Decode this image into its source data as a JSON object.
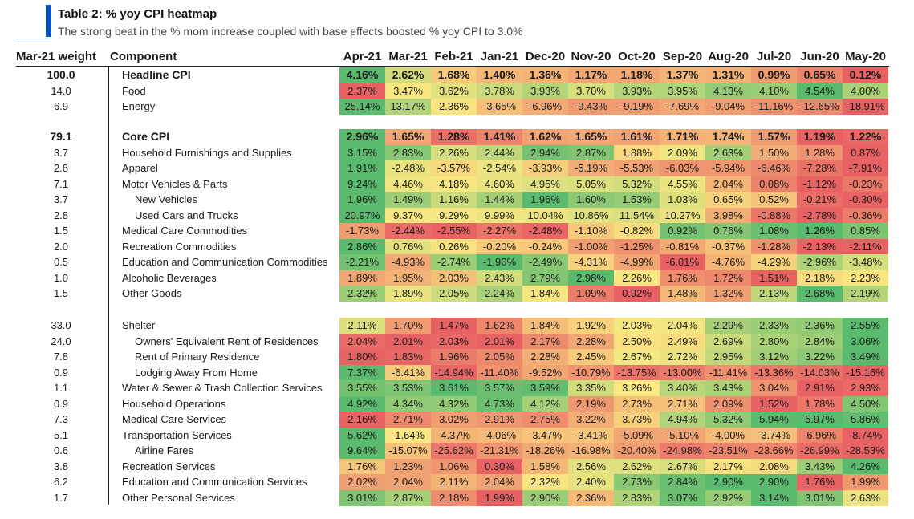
{
  "header": {
    "title": "Table 2: % yoy CPI heatmap",
    "subtitle": "The strong beat in the % mom increase coupled with base effects boosted % yoy CPI to 3.0%"
  },
  "chart_data": {
    "type": "table",
    "weight_header": "Mar-21 weight",
    "component_header": "Component",
    "months": [
      "Apr-21",
      "Mar-21",
      "Feb-21",
      "Jan-21",
      "Dec-20",
      "Nov-20",
      "Oct-20",
      "Sep-20",
      "Aug-20",
      "Jul-20",
      "Jun-20",
      "May-20"
    ],
    "rows": [
      {
        "weight": "100.0",
        "name": "Headline CPI",
        "indent": 0,
        "bold": true,
        "values": [
          "4.16%",
          "2.62%",
          "1.68%",
          "1.40%",
          "1.36%",
          "1.17%",
          "1.18%",
          "1.37%",
          "1.31%",
          "0.99%",
          "0.65%",
          "0.12%"
        ]
      },
      {
        "weight": "14.0",
        "name": "Food",
        "indent": 0,
        "bold": false,
        "values": [
          "2.37%",
          "3.47%",
          "3.62%",
          "3.78%",
          "3.93%",
          "3.70%",
          "3.93%",
          "3.95%",
          "4.13%",
          "4.10%",
          "4.54%",
          "4.00%"
        ]
      },
      {
        "weight": "6.9",
        "name": "Energy",
        "indent": 0,
        "bold": false,
        "values": [
          "25.14%",
          "13.17%",
          "2.36%",
          "-3.65%",
          "-6.96%",
          "-9.43%",
          "-9.19%",
          "-7.69%",
          "-9.04%",
          "-11.16%",
          "-12.65%",
          "-18.91%"
        ]
      },
      {
        "weight": "79.1",
        "name": "Core CPI",
        "indent": 0,
        "bold": true,
        "values": [
          "2.96%",
          "1.65%",
          "1.28%",
          "1.41%",
          "1.62%",
          "1.65%",
          "1.61%",
          "1.71%",
          "1.74%",
          "1.57%",
          "1.19%",
          "1.22%"
        ]
      },
      {
        "weight": "3.7",
        "name": "Household Furnishings and Supplies",
        "indent": 0,
        "bold": false,
        "values": [
          "3.15%",
          "2.83%",
          "2.26%",
          "2.44%",
          "2.94%",
          "2.87%",
          "1.88%",
          "2.09%",
          "2.63%",
          "1.50%",
          "1.28%",
          "0.87%"
        ]
      },
      {
        "weight": "2.8",
        "name": "Apparel",
        "indent": 0,
        "bold": false,
        "values": [
          "1.91%",
          "-2.48%",
          "-3.57%",
          "-2.54%",
          "-3.93%",
          "-5.19%",
          "-5.53%",
          "-6.03%",
          "-5.94%",
          "-6.46%",
          "-7.28%",
          "-7.91%"
        ]
      },
      {
        "weight": "7.1",
        "name": "Motor Vehicles & Parts",
        "indent": 0,
        "bold": false,
        "values": [
          "9.24%",
          "4.46%",
          "4.18%",
          "4.60%",
          "4.95%",
          "5.05%",
          "5.32%",
          "4.55%",
          "2.04%",
          "0.08%",
          "-1.12%",
          "-0.23%"
        ]
      },
      {
        "weight": "3.7",
        "name": "New Vehicles",
        "indent": 1,
        "bold": false,
        "values": [
          "1.96%",
          "1.49%",
          "1.16%",
          "1.44%",
          "1.96%",
          "1.60%",
          "1.53%",
          "1.03%",
          "0.65%",
          "0.52%",
          "-0.21%",
          "-0.30%"
        ]
      },
      {
        "weight": "2.8",
        "name": "Used Cars and Trucks",
        "indent": 1,
        "bold": false,
        "values": [
          "20.97%",
          "9.37%",
          "9.29%",
          "9.99%",
          "10.04%",
          "10.86%",
          "11.54%",
          "10.27%",
          "3.98%",
          "-0.88%",
          "-2.78%",
          "-0.36%"
        ]
      },
      {
        "weight": "1.5",
        "name": "Medical Care Commodities",
        "indent": 0,
        "bold": false,
        "values": [
          "-1.73%",
          "-2.44%",
          "-2.55%",
          "-2.27%",
          "-2.48%",
          "-1.10%",
          "-0.82%",
          "0.92%",
          "0.76%",
          "1.08%",
          "1.26%",
          "0.85%"
        ]
      },
      {
        "weight": "2.0",
        "name": "Recreation Commodities",
        "indent": 0,
        "bold": false,
        "values": [
          "2.86%",
          "0.76%",
          "0.26%",
          "-0.20%",
          "-0.24%",
          "-1.00%",
          "-1.25%",
          "-0.81%",
          "-0.37%",
          "-1.28%",
          "-2.13%",
          "-2.11%"
        ]
      },
      {
        "weight": "0.5",
        "name": "Education and Communication Commodities",
        "indent": 0,
        "bold": false,
        "values": [
          "-2.21%",
          "-4.93%",
          "-2.74%",
          "-1.90%",
          "-2.49%",
          "-4.31%",
          "-4.99%",
          "-6.01%",
          "-4.76%",
          "-4.29%",
          "-2.96%",
          "-3.48%"
        ]
      },
      {
        "weight": "1.0",
        "name": "Alcoholic Beverages",
        "indent": 0,
        "bold": false,
        "values": [
          "1.89%",
          "1.95%",
          "2.03%",
          "2.43%",
          "2.79%",
          "2.98%",
          "2.26%",
          "1.76%",
          "1.72%",
          "1.51%",
          "2.18%",
          "2.23%"
        ]
      },
      {
        "weight": "1.5",
        "name": "Other Goods",
        "indent": 0,
        "bold": false,
        "values": [
          "2.32%",
          "1.89%",
          "2.05%",
          "2.24%",
          "1.84%",
          "1.09%",
          "0.92%",
          "1.48%",
          "1.32%",
          "2.13%",
          "2.68%",
          "2.19%"
        ]
      },
      {
        "weight": "33.0",
        "name": "Shelter",
        "indent": 0,
        "bold": false,
        "values": [
          "2.11%",
          "1.70%",
          "1.47%",
          "1.62%",
          "1.84%",
          "1.92%",
          "2.03%",
          "2.04%",
          "2.29%",
          "2.33%",
          "2.36%",
          "2.55%"
        ]
      },
      {
        "weight": "24.0",
        "name": "Owners' Equivalent Rent of Residences",
        "indent": 1,
        "bold": false,
        "values": [
          "2.04%",
          "2.01%",
          "2.03%",
          "2.01%",
          "2.17%",
          "2.28%",
          "2.50%",
          "2.49%",
          "2.69%",
          "2.80%",
          "2.84%",
          "3.06%"
        ]
      },
      {
        "weight": "7.8",
        "name": "Rent of Primary Residence",
        "indent": 1,
        "bold": false,
        "values": [
          "1.80%",
          "1.83%",
          "1.96%",
          "2.05%",
          "2.28%",
          "2.45%",
          "2.67%",
          "2.72%",
          "2.95%",
          "3.12%",
          "3.22%",
          "3.49%"
        ]
      },
      {
        "weight": "0.9",
        "name": "Lodging Away From Home",
        "indent": 1,
        "bold": false,
        "values": [
          "7.37%",
          "-6.41%",
          "-14.94%",
          "-11.40%",
          "-9.52%",
          "-10.79%",
          "-13.75%",
          "-13.00%",
          "-11.41%",
          "-13.36%",
          "-14.03%",
          "-15.16%"
        ]
      },
      {
        "weight": "1.1",
        "name": "Water & Sewer & Trash Collection Services",
        "indent": 0,
        "bold": false,
        "values": [
          "3.55%",
          "3.53%",
          "3.61%",
          "3.57%",
          "3.59%",
          "3.35%",
          "3.26%",
          "3.40%",
          "3.43%",
          "3.04%",
          "2.91%",
          "2.93%"
        ]
      },
      {
        "weight": "0.9",
        "name": "Household Operations",
        "indent": 0,
        "bold": false,
        "values": [
          "4.92%",
          "4.34%",
          "4.32%",
          "4.73%",
          "4.12%",
          "2.19%",
          "2.73%",
          "2.71%",
          "2.09%",
          "1.52%",
          "1.78%",
          "4.50%"
        ]
      },
      {
        "weight": "7.3",
        "name": "Medical Care Services",
        "indent": 0,
        "bold": false,
        "values": [
          "2.16%",
          "2.71%",
          "3.02%",
          "2.91%",
          "2.75%",
          "3.22%",
          "3.73%",
          "4.94%",
          "5.32%",
          "5.94%",
          "5.97%",
          "5.86%"
        ]
      },
      {
        "weight": "5.1",
        "name": "Transportation Services",
        "indent": 0,
        "bold": false,
        "values": [
          "5.62%",
          "-1.64%",
          "-4.37%",
          "-4.06%",
          "-3.47%",
          "-3.41%",
          "-5.09%",
          "-5.10%",
          "-4.00%",
          "-3.74%",
          "-6.96%",
          "-8.74%"
        ]
      },
      {
        "weight": "0.6",
        "name": "Airline Fares",
        "indent": 1,
        "bold": false,
        "values": [
          "9.64%",
          "-15.07%",
          "-25.62%",
          "-21.31%",
          "-18.26%",
          "-16.98%",
          "-20.40%",
          "-24.98%",
          "-23.51%",
          "-23.66%",
          "-26.99%",
          "-28.53%"
        ]
      },
      {
        "weight": "3.8",
        "name": "Recreation Services",
        "indent": 0,
        "bold": false,
        "values": [
          "1.76%",
          "1.23%",
          "1.06%",
          "0.30%",
          "1.58%",
          "2.56%",
          "2.62%",
          "2.67%",
          "2.17%",
          "2.08%",
          "3.43%",
          "4.26%"
        ]
      },
      {
        "weight": "6.2",
        "name": "Education and Communication Services",
        "indent": 0,
        "bold": false,
        "values": [
          "2.02%",
          "2.04%",
          "2.11%",
          "2.04%",
          "2.32%",
          "2.40%",
          "2.73%",
          "2.84%",
          "2.90%",
          "2.90%",
          "1.76%",
          "1.99%"
        ]
      },
      {
        "weight": "1.7",
        "name": "Other Personal Services",
        "indent": 0,
        "bold": false,
        "values": [
          "3.01%",
          "2.87%",
          "2.18%",
          "1.99%",
          "2.90%",
          "2.36%",
          "2.83%",
          "3.07%",
          "2.92%",
          "3.14%",
          "3.01%",
          "2.63%"
        ]
      }
    ]
  }
}
